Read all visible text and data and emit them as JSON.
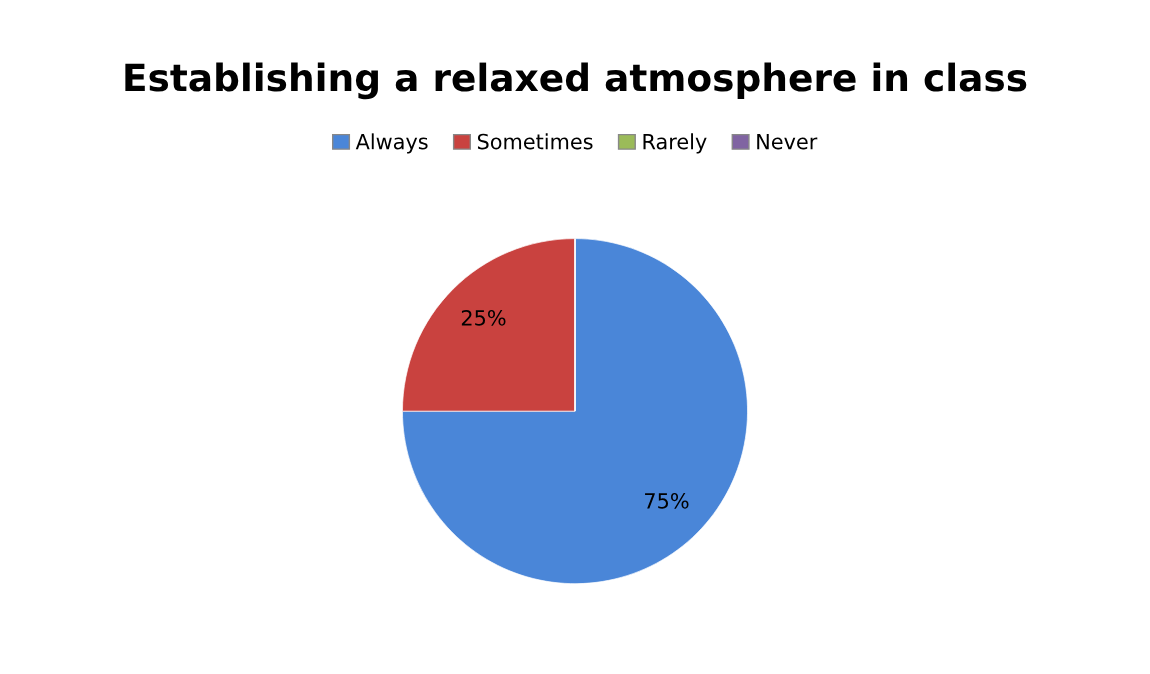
{
  "chart_data": {
    "type": "pie",
    "title": "Establishing a relaxed atmosphere in class",
    "categories": [
      "Always",
      "Sometimes",
      "Rarely",
      "Never"
    ],
    "values": [
      75,
      25,
      0,
      0
    ],
    "colors": [
      "#4a86d8",
      "#c9423f",
      "#9bbb59",
      "#8064a2"
    ],
    "value_labels": [
      "75%",
      "25%",
      null,
      null
    ],
    "legend": "top"
  }
}
